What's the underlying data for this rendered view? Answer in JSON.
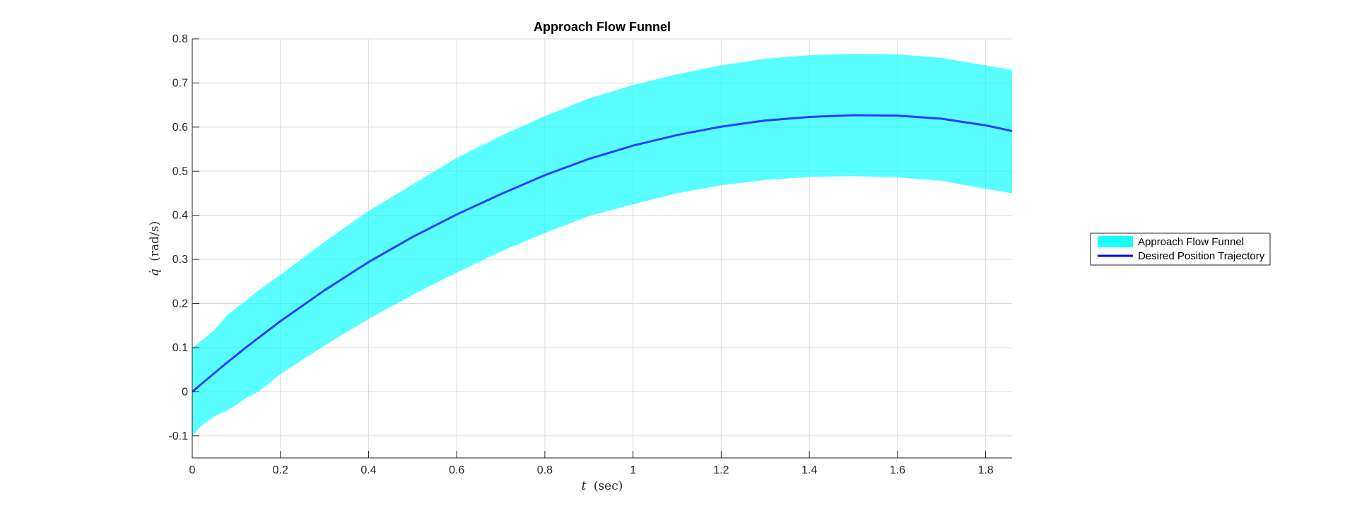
{
  "chart_data": {
    "type": "area",
    "title": "Approach Flow Funnel",
    "xlabel_var": "t",
    "xlabel_unit": "(sec)",
    "ylabel_var": "q̇",
    "ylabel_unit": "(rad/s)",
    "xlim": [
      0,
      1.86
    ],
    "ylim": [
      -0.15,
      0.8
    ],
    "xticks": [
      0,
      0.2,
      0.4,
      0.6,
      0.8,
      1,
      1.2,
      1.4,
      1.6,
      1.8
    ],
    "xtick_labels": [
      "0",
      "0.2",
      "0.4",
      "0.6",
      "0.8",
      "1",
      "1.2",
      "1.4",
      "1.6",
      "1.8"
    ],
    "yticks": [
      -0.1,
      0,
      0.1,
      0.2,
      0.3,
      0.4,
      0.5,
      0.6,
      0.7,
      0.8
    ],
    "ytick_labels": [
      "-0.1",
      "0",
      "0.1",
      "0.2",
      "0.3",
      "0.4",
      "0.5",
      "0.6",
      "0.7",
      "0.8"
    ],
    "grid": true,
    "legend_position": "outside-right",
    "x": [
      0,
      0.02,
      0.05,
      0.08,
      0.1,
      0.12,
      0.15,
      0.2,
      0.3,
      0.4,
      0.5,
      0.6,
      0.7,
      0.8,
      0.9,
      1.0,
      1.1,
      1.2,
      1.3,
      1.4,
      1.5,
      1.6,
      1.7,
      1.8,
      1.86
    ],
    "series": [
      {
        "name": "Desired Position Trajectory",
        "color": "#1f3fff",
        "values": [
          0,
          0.017,
          0.042,
          0.067,
          0.083,
          0.099,
          0.122,
          0.16,
          0.23,
          0.294,
          0.351,
          0.402,
          0.448,
          0.491,
          0.528,
          0.558,
          0.582,
          0.601,
          0.615,
          0.623,
          0.627,
          0.626,
          0.619,
          0.604,
          0.591
        ]
      },
      {
        "name": "Approach Flow Funnel",
        "color": "#00ffff",
        "type": "band",
        "upper": [
          0.1,
          0.115,
          0.14,
          0.175,
          0.19,
          0.205,
          0.23,
          0.265,
          0.34,
          0.41,
          0.47,
          0.53,
          0.58,
          0.625,
          0.665,
          0.695,
          0.72,
          0.74,
          0.755,
          0.763,
          0.766,
          0.765,
          0.757,
          0.74,
          0.73
        ],
        "lower": [
          -0.1,
          -0.078,
          -0.056,
          -0.042,
          -0.03,
          -0.015,
          0.0,
          0.04,
          0.105,
          0.165,
          0.22,
          0.27,
          0.318,
          0.36,
          0.398,
          0.425,
          0.45,
          0.468,
          0.48,
          0.487,
          0.489,
          0.486,
          0.478,
          0.46,
          0.45
        ]
      }
    ]
  },
  "legend": {
    "items": [
      {
        "label": "Approach Flow Funnel"
      },
      {
        "label": "Desired Position Trajectory"
      }
    ]
  }
}
